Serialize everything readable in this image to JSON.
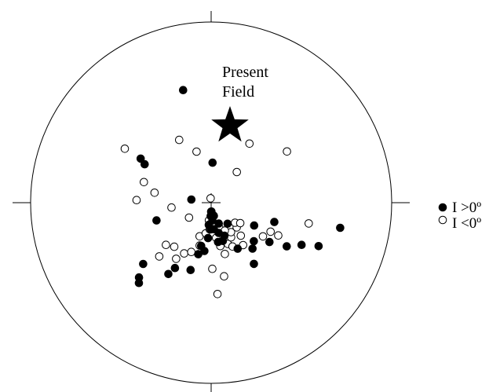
{
  "diagram": {
    "type": "equal-area stereonet",
    "annotation": {
      "line1": "Present",
      "line2": "Field"
    },
    "legend": [
      {
        "symbol": "filled-circle",
        "label": "I >0º"
      },
      {
        "symbol": "open-circle",
        "label": "I <0º"
      }
    ],
    "colors": {
      "stroke": "#000000",
      "fill_positive": "#000000",
      "fill_negative": "#ffffff"
    }
  },
  "chart_data": {
    "type": "scatter",
    "coordinate_system": "equal-area polar (declination, inclination)",
    "present_field": {
      "marker": "star"
    },
    "series": [
      {
        "name": "I >0º",
        "symbol": "filled",
        "points": [
          [
            2,
            72
          ],
          [
            346,
            36
          ],
          [
            302,
            52
          ],
          [
            300,
            55
          ],
          [
            279,
            81
          ],
          [
            252,
            64
          ],
          [
            228,
            48
          ],
          [
            224,
            42
          ],
          [
            222,
            40
          ],
          [
            211,
            52
          ],
          [
            209,
            56
          ],
          [
            197,
            58
          ],
          [
            194,
            66
          ],
          [
            193,
            70
          ],
          [
            188,
            68
          ],
          [
            185,
            74
          ],
          [
            181,
            78
          ],
          [
            178,
            86
          ],
          [
            182,
            84
          ],
          [
            186,
            80
          ],
          [
            170,
            72
          ],
          [
            174,
            78
          ],
          [
            176,
            82
          ],
          [
            168,
            84
          ],
          [
            163,
            72
          ],
          [
            166,
            76
          ],
          [
            160,
            80
          ],
          [
            158,
            74
          ],
          [
            150,
            66
          ],
          [
            145,
            56
          ],
          [
            142,
            78
          ],
          [
            138,
            62
          ],
          [
            132,
            64
          ],
          [
            124,
            58
          ],
          [
            118,
            68
          ],
          [
            107,
            60
          ],
          [
            101,
            28
          ],
          [
            112,
            36
          ],
          [
            115,
            44
          ],
          [
            120,
            50
          ]
        ]
      },
      {
        "name": "I <0º",
        "symbol": "open",
        "points": [
          [
            353,
            88
          ],
          [
            344,
            66
          ],
          [
            333,
            58
          ],
          [
            302,
            43
          ],
          [
            287,
            58
          ],
          [
            280,
            64
          ],
          [
            272,
            56
          ],
          [
            263,
            72
          ],
          [
            236,
            78
          ],
          [
            227,
            62
          ],
          [
            224,
            56
          ],
          [
            220,
            64
          ],
          [
            212,
            60
          ],
          [
            208,
            64
          ],
          [
            202,
            66
          ],
          [
            199,
            74
          ],
          [
            195,
            70
          ],
          [
            190,
            76
          ],
          [
            187,
            82
          ],
          [
            183,
            78
          ],
          [
            180,
            86
          ],
          [
            176,
            80
          ],
          [
            172,
            74
          ],
          [
            168,
            70
          ],
          [
            165,
            66
          ],
          [
            162,
            78
          ],
          [
            158,
            70
          ],
          [
            154,
            68
          ],
          [
            150,
            72
          ],
          [
            146,
            74
          ],
          [
            143,
            66
          ],
          [
            138,
            70
          ],
          [
            134,
            74
          ],
          [
            130,
            76
          ],
          [
            176,
            48
          ],
          [
            170,
            56
          ],
          [
            154,
            76
          ],
          [
            125,
            74
          ],
          [
            116,
            60
          ],
          [
            116,
            56
          ],
          [
            102,
            44
          ],
          [
            40,
            72
          ],
          [
            33,
            58
          ],
          [
            56,
            48
          ],
          [
            179,
            60
          ],
          [
            123,
            62
          ]
        ]
      }
    ]
  }
}
